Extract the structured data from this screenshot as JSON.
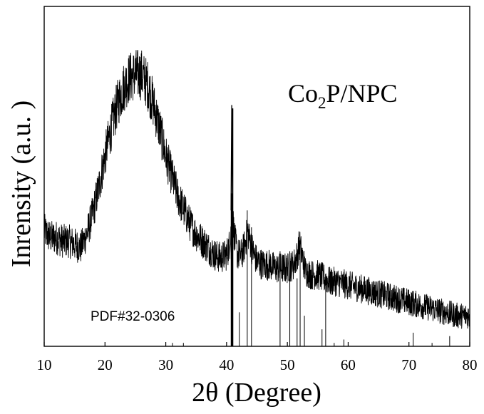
{
  "chart_data": {
    "type": "line",
    "title": "",
    "xlabel": "2θ (Degree)",
    "ylabel": "Inrensity (a.u. )",
    "xlim": [
      10,
      80
    ],
    "ylim": [
      0,
      100
    ],
    "xticks": [
      10,
      20,
      30,
      40,
      50,
      60,
      70,
      80
    ],
    "annotation": {
      "main": "Co",
      "sub": "2",
      "rest": "P/NPC"
    },
    "reference_label": "PDF#32-0306",
    "series": [
      {
        "name": "Co2P/NPC",
        "color": "#000000",
        "noise": 6,
        "x": [
          10,
          11,
          12,
          13,
          14,
          15,
          16,
          17,
          18,
          19,
          20,
          21,
          22,
          23,
          24,
          25,
          26,
          27,
          28,
          29,
          30,
          31,
          32,
          33,
          34,
          35,
          36,
          37,
          38,
          39,
          40,
          40.5,
          40.9,
          41.3,
          41.8,
          42.5,
          43,
          43.5,
          44,
          44.5,
          45,
          46,
          47,
          48,
          49,
          50,
          51,
          51.5,
          52,
          52.5,
          53,
          54,
          55,
          56,
          57,
          58,
          60,
          62,
          64,
          66,
          68,
          70,
          72,
          74,
          76,
          78,
          80
        ],
        "y": [
          34,
          32,
          32,
          31,
          31,
          30,
          29,
          33,
          39,
          47,
          56,
          64,
          71,
          76,
          79,
          80,
          80,
          77,
          71,
          64,
          56,
          50,
          44,
          40,
          36,
          33,
          31,
          29,
          27,
          26,
          27,
          30,
          40,
          32,
          27,
          27,
          30,
          34,
          30,
          27,
          25,
          24,
          24,
          23,
          23,
          23,
          24,
          26,
          30,
          26,
          22,
          21,
          21,
          20,
          19,
          19,
          18,
          17,
          16,
          15,
          14,
          13,
          12,
          11,
          10,
          9,
          9
        ]
      }
    ],
    "reference_peaks": {
      "name": "PDF#32-0306",
      "x": [
        31.1,
        32.9,
        40.8,
        41.0,
        42.1,
        43.4,
        44.1,
        48.8,
        50.4,
        51.6,
        52.1,
        52.8,
        55.7,
        56.3,
        57.7,
        59.3,
        70.7,
        73.8,
        76.7
      ],
      "y": [
        1,
        1,
        45,
        70,
        10,
        40,
        35,
        28,
        28,
        20,
        28,
        9,
        5,
        18,
        1,
        2,
        4,
        1,
        3
      ]
    }
  }
}
